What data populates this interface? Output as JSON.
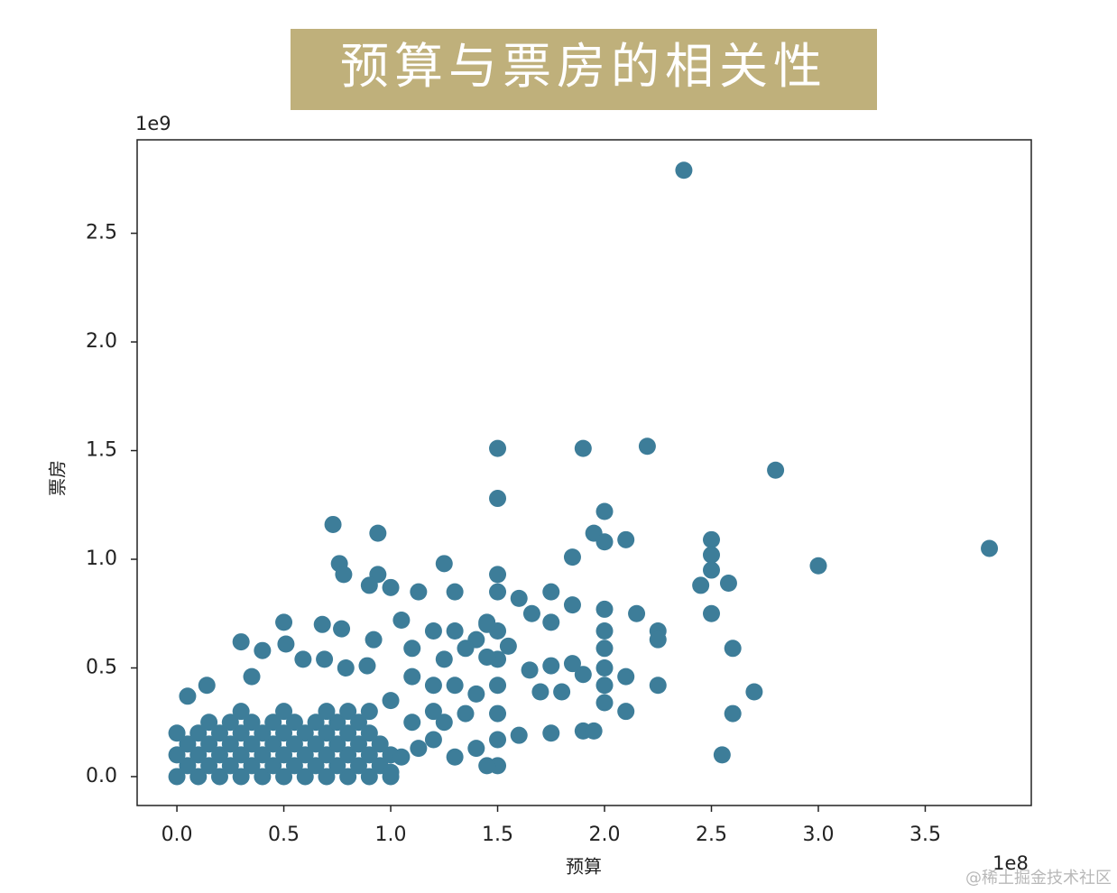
{
  "chart_data": {
    "type": "scatter",
    "title": "预算与票房的相关性",
    "x_label": "预算",
    "y_label": "票房",
    "x_offset": "1e8",
    "y_offset": "1e9",
    "watermark": "@稀土掘金技术社区",
    "color": "#3d7d99",
    "xlim": [
      -18600000.0,
      399600000.0
    ],
    "ylim": [
      -133000000.0,
      2930000000.0
    ],
    "xticks": [
      {
        "value": 0,
        "label": "0.0"
      },
      {
        "value": 50000000.0,
        "label": "0.5"
      },
      {
        "value": 100000000.0,
        "label": "1.0"
      },
      {
        "value": 150000000.0,
        "label": "1.5"
      },
      {
        "value": 200000000.0,
        "label": "2.0"
      },
      {
        "value": 250000000.0,
        "label": "2.5"
      },
      {
        "value": 300000000.0,
        "label": "3.0"
      },
      {
        "value": 350000000.0,
        "label": "3.5"
      }
    ],
    "yticks": [
      {
        "value": 0,
        "label": "0.0"
      },
      {
        "value": 500000000.0,
        "label": "0.5"
      },
      {
        "value": 1000000000.0,
        "label": "1.0"
      },
      {
        "value": 1500000000.0,
        "label": "1.5"
      },
      {
        "value": 2000000000.0,
        "label": "2.0"
      },
      {
        "value": 2500000000.0,
        "label": "2.5"
      }
    ],
    "x": [
      0,
      10000000.0,
      20000000.0,
      30000000.0,
      40000000.0,
      50000000.0,
      60000000.0,
      70000000.0,
      80000000.0,
      90000000.0,
      100000000.0,
      5000000.0,
      15000000.0,
      25000000.0,
      35000000.0,
      45000000.0,
      55000000.0,
      65000000.0,
      75000000.0,
      85000000.0,
      95000000.0,
      0,
      10000000.0,
      20000000.0,
      30000000.0,
      40000000.0,
      50000000.0,
      60000000.0,
      70000000.0,
      80000000.0,
      90000000.0,
      100000000.0,
      5000000.0,
      15000000.0,
      25000000.0,
      35000000.0,
      45000000.0,
      55000000.0,
      65000000.0,
      75000000.0,
      85000000.0,
      95000000.0,
      0,
      10000000.0,
      20000000.0,
      30000000.0,
      40000000.0,
      50000000.0,
      60000000.0,
      70000000.0,
      80000000.0,
      90000000.0,
      15000000.0,
      25000000.0,
      35000000.0,
      45000000.0,
      55000000.0,
      65000000.0,
      75000000.0,
      85000000.0,
      30000000.0,
      50000000.0,
      70000000.0,
      80000000.0,
      90000000.0,
      237100000.0,
      380000000.0,
      280000000.0,
      300000000.0,
      150000000.0,
      190000000.0,
      220000000.0,
      150000000.0,
      200000000.0,
      73000000.0,
      94000000.0,
      210000000.0,
      195000000.0,
      200000000.0,
      250000000.0,
      250000000.0,
      250000000.0,
      245000000.0,
      258000000.0,
      185000000.0,
      125000000.0,
      76000000.0,
      78000000.0,
      94000000.0,
      90000000.0,
      100000000.0,
      113000000.0,
      130000000.0,
      150000000.0,
      150000000.0,
      175000000.0,
      160000000.0,
      215000000.0,
      250000000.0,
      225000000.0,
      225000000.0,
      260000000.0,
      225000000.0,
      270000000.0,
      260000000.0,
      255000000.0,
      210000000.0,
      200000000.0,
      190000000.0,
      195000000.0,
      200000000.0,
      200000000.0,
      200000000.0,
      200000000.0,
      200000000.0,
      210000000.0,
      190000000.0,
      185000000.0,
      175000000.0,
      165000000.0,
      170000000.0,
      175000000.0,
      180000000.0,
      160000000.0,
      150000000.0,
      150000000.0,
      150000000.0,
      150000000.0,
      150000000.0,
      150000000.0,
      145000000.0,
      166000000.0,
      175000000.0,
      185000000.0,
      145000000.0,
      140000000.0,
      135000000.0,
      130000000.0,
      120000000.0,
      125000000.0,
      120000000.0,
      130000000.0,
      140000000.0,
      135000000.0,
      125000000.0,
      120000000.0,
      130000000.0,
      140000000.0,
      110000000.0,
      105000000.0,
      110000000.0,
      110000000.0,
      105000000.0,
      113000000.0,
      92000000.0,
      77000000.0,
      68000000.0,
      50000000.0,
      51000000.0,
      30000000.0,
      40000000.0,
      59000000.0,
      69000000.0,
      79000000.0,
      89000000.0,
      35000000.0,
      14000000.0,
      5000000.0,
      100000000.0,
      100000000.0,
      120000000.0,
      145000000.0,
      145000000.0,
      155000000.0
    ],
    "values": [
      0,
      0,
      0,
      0,
      0,
      0,
      0,
      0,
      0,
      0,
      0,
      50000000.0,
      50000000.0,
      50000000.0,
      50000000.0,
      50000000.0,
      50000000.0,
      50000000.0,
      50000000.0,
      50000000.0,
      50000000.0,
      100000000.0,
      100000000.0,
      100000000.0,
      100000000.0,
      100000000.0,
      100000000.0,
      100000000.0,
      100000000.0,
      100000000.0,
      100000000.0,
      100000000.0,
      150000000.0,
      150000000.0,
      150000000.0,
      150000000.0,
      150000000.0,
      150000000.0,
      150000000.0,
      150000000.0,
      150000000.0,
      150000000.0,
      200000000.0,
      200000000.0,
      200000000.0,
      200000000.0,
      200000000.0,
      200000000.0,
      200000000.0,
      200000000.0,
      200000000.0,
      200000000.0,
      250000000.0,
      250000000.0,
      250000000.0,
      250000000.0,
      250000000.0,
      250000000.0,
      250000000.0,
      250000000.0,
      300000000.0,
      300000000.0,
      300000000.0,
      300000000.0,
      300000000.0,
      2790000000.0,
      1050000000.0,
      1410000000.0,
      970000000.0,
      1510000000.0,
      1510000000.0,
      1520000000.0,
      1280000000.0,
      1220000000.0,
      1160000000.0,
      1120000000.0,
      1090000000.0,
      1120000000.0,
      1080000000.0,
      1090000000.0,
      1020000000.0,
      950000000.0,
      880000000.0,
      890000000.0,
      1010000000.0,
      980000000.0,
      980000000.0,
      930000000.0,
      930000000.0,
      880000000.0,
      870000000.0,
      850000000.0,
      850000000.0,
      930000000.0,
      850000000.0,
      850000000.0,
      820000000.0,
      750000000.0,
      750000000.0,
      670000000.0,
      630000000.0,
      590000000.0,
      420000000.0,
      390000000.0,
      290000000.0,
      100000000.0,
      300000000.0,
      340000000.0,
      210000000.0,
      210000000.0,
      770000000.0,
      670000000.0,
      590000000.0,
      500000000.0,
      420000000.0,
      460000000.0,
      470000000.0,
      520000000.0,
      510000000.0,
      490000000.0,
      390000000.0,
      200000000.0,
      390000000.0,
      190000000.0,
      670000000.0,
      540000000.0,
      420000000.0,
      290000000.0,
      170000000.0,
      50000000.0,
      50000000.0,
      750000000.0,
      710000000.0,
      790000000.0,
      710000000.0,
      630000000.0,
      590000000.0,
      670000000.0,
      670000000.0,
      540000000.0,
      420000000.0,
      420000000.0,
      380000000.0,
      290000000.0,
      250000000.0,
      170000000.0,
      90000000.0,
      130000000.0,
      590000000.0,
      720000000.0,
      460000000.0,
      250000000.0,
      90000000.0,
      130000000.0,
      630000000.0,
      680000000.0,
      700000000.0,
      710000000.0,
      610000000.0,
      620000000.0,
      580000000.0,
      540000000.0,
      540000000.0,
      500000000.0,
      510000000.0,
      460000000.0,
      420000000.0,
      370000000.0,
      20000000.0,
      350000000.0,
      300000000.0,
      550000000.0,
      700000000.0,
      600000000.0
    ]
  }
}
